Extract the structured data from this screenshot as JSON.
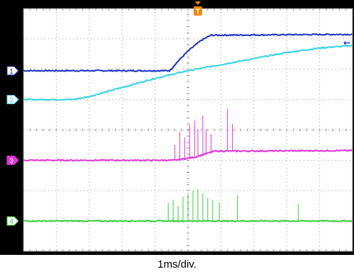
{
  "timebase_label": "1ms/div.",
  "trigger_marker": {
    "icon": "trigger-marker-icon",
    "glyph": "T",
    "color": "#f08a00"
  },
  "right_marker": {
    "icon": "left-arrow-icon",
    "glyph": "←",
    "color": "#1a2fc8"
  },
  "colors": {
    "frame": "#000000",
    "screen": "#ffffff",
    "grid": "#9a9a9a",
    "ch1": "#1a2fc8",
    "ch2": "#33d3e6",
    "ch3": "#e234d6",
    "ch4": "#34d23a"
  },
  "chart_data": {
    "type": "line",
    "title": "",
    "xlabel": "1ms/div.",
    "ylabel": "",
    "x_unit": "div",
    "y_unit": "div",
    "xlim": [
      0,
      10
    ],
    "ylim": [
      0,
      8
    ],
    "grid": true,
    "trigger_x": 5.3,
    "series": [
      {
        "name": "1",
        "color": "#1a2fc8",
        "points": [
          [
            0,
            5.95
          ],
          [
            4.45,
            5.95
          ],
          [
            4.6,
            6.15
          ],
          [
            5.0,
            6.6
          ],
          [
            5.4,
            6.95
          ],
          [
            5.7,
            7.12
          ],
          [
            10,
            7.15
          ]
        ]
      },
      {
        "name": "2",
        "color": "#33d3e6",
        "points": [
          [
            0,
            5.0
          ],
          [
            1.5,
            5.0
          ],
          [
            2.0,
            5.1
          ],
          [
            3.0,
            5.4
          ],
          [
            4.0,
            5.7
          ],
          [
            5.0,
            5.95
          ],
          [
            6.0,
            6.15
          ],
          [
            7.0,
            6.35
          ],
          [
            8.0,
            6.55
          ],
          [
            9.0,
            6.7
          ],
          [
            10,
            6.78
          ]
        ]
      },
      {
        "name": "3",
        "color": "#e234d6",
        "points": [
          [
            0,
            3.0
          ],
          [
            4.6,
            3.0
          ],
          [
            5.2,
            3.1
          ],
          [
            5.8,
            3.3
          ],
          [
            10,
            3.32
          ]
        ],
        "spikes": [
          [
            4.6,
            0.5
          ],
          [
            4.75,
            0.9
          ],
          [
            4.9,
            0.7
          ],
          [
            5.05,
            1.1
          ],
          [
            5.2,
            1.2
          ],
          [
            5.3,
            0.9
          ],
          [
            5.45,
            1.3
          ],
          [
            5.55,
            0.8
          ],
          [
            5.7,
            0.6
          ],
          [
            6.2,
            1.4
          ],
          [
            6.35,
            0.9
          ]
        ]
      },
      {
        "name": "4",
        "color": "#34d23a",
        "points": [
          [
            0,
            1.0
          ],
          [
            10,
            1.0
          ]
        ],
        "spikes": [
          [
            4.4,
            0.6
          ],
          [
            4.55,
            0.7
          ],
          [
            4.7,
            0.5
          ],
          [
            4.85,
            0.8
          ],
          [
            5.0,
            0.9
          ],
          [
            5.15,
            1.0
          ],
          [
            5.3,
            1.05
          ],
          [
            5.45,
            0.9
          ],
          [
            5.6,
            0.75
          ],
          [
            5.75,
            0.7
          ],
          [
            5.95,
            0.6
          ],
          [
            6.5,
            0.85
          ],
          [
            8.35,
            0.55
          ]
        ]
      }
    ]
  }
}
